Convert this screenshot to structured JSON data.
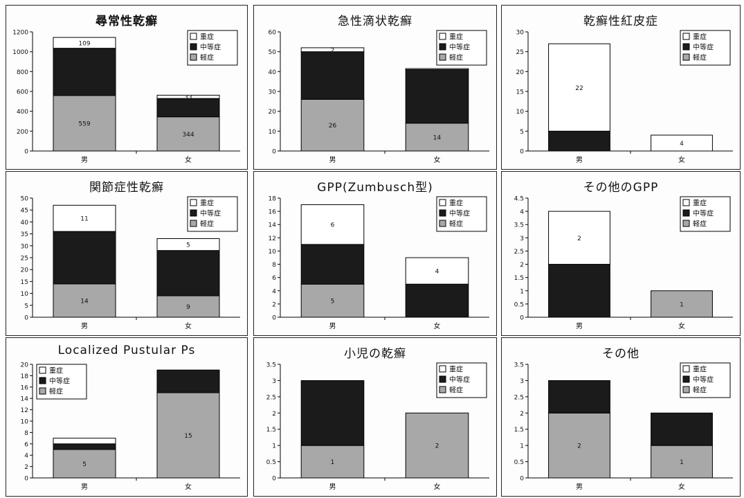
{
  "figure": {
    "colors": {
      "mild": "#a8a8a8",
      "moderate": "#1b1b1b",
      "severe": "#ffffff",
      "axis": "#000000"
    }
  },
  "chart_data": [
    {
      "type": "bar",
      "title": "尋常性乾癬",
      "title_bold": true,
      "categories": [
        "男",
        "女"
      ],
      "series": [
        {
          "name": "軽症",
          "values": [
            559,
            344
          ]
        },
        {
          "name": "中等症",
          "values": [
            476,
            185
          ]
        },
        {
          "name": "重症",
          "values": [
            109,
            33
          ]
        }
      ],
      "labels": {
        "軽症": [
          "559",
          "344"
        ],
        "中等症": [
          "",
          ""
        ],
        "重症": [
          "109",
          "33"
        ]
      },
      "ylim": [
        0,
        1200
      ],
      "ystep": 200,
      "legend": "top-right",
      "grid": false
    },
    {
      "type": "bar",
      "title": "急性滴状乾癬",
      "categories": [
        "男",
        "女"
      ],
      "series": [
        {
          "name": "軽症",
          "values": [
            26,
            14
          ]
        },
        {
          "name": "中等症",
          "values": [
            24,
            27
          ]
        },
        {
          "name": "重症",
          "values": [
            2,
            0.5
          ]
        }
      ],
      "labels": {
        "軽症": [
          "26",
          "14"
        ],
        "中等症": [
          "",
          ""
        ],
        "重症": [
          "2",
          ""
        ]
      },
      "ylim": [
        0,
        60
      ],
      "ystep": 10,
      "legend": "top-right",
      "grid": false
    },
    {
      "type": "bar",
      "title": "乾癬性紅皮症",
      "categories": [
        "男",
        "女"
      ],
      "series": [
        {
          "name": "軽症",
          "values": [
            0,
            0
          ]
        },
        {
          "name": "中等症",
          "values": [
            5,
            0
          ]
        },
        {
          "name": "重症",
          "values": [
            22,
            4
          ]
        }
      ],
      "labels": {
        "軽症": [
          "",
          ""
        ],
        "中等症": [
          "",
          ""
        ],
        "重症": [
          "22",
          "4"
        ]
      },
      "ylim": [
        0,
        30
      ],
      "ystep": 5,
      "legend": "top-right",
      "grid": false
    },
    {
      "type": "bar",
      "title": "関節症性乾癬",
      "categories": [
        "男",
        "女"
      ],
      "series": [
        {
          "name": "軽症",
          "values": [
            14,
            9
          ]
        },
        {
          "name": "中等症",
          "values": [
            22,
            19
          ]
        },
        {
          "name": "重症",
          "values": [
            11,
            5
          ]
        }
      ],
      "labels": {
        "軽症": [
          "14",
          "9"
        ],
        "中等症": [
          "",
          ""
        ],
        "重症": [
          "11",
          "5"
        ]
      },
      "ylim": [
        0,
        50
      ],
      "ystep": 5,
      "legend": "top-right",
      "grid": false
    },
    {
      "type": "bar",
      "title": "GPP(Zumbusch型)",
      "categories": [
        "男",
        "女"
      ],
      "series": [
        {
          "name": "軽症",
          "values": [
            5,
            0
          ]
        },
        {
          "name": "中等症",
          "values": [
            6,
            5
          ]
        },
        {
          "name": "重症",
          "values": [
            6,
            4
          ]
        }
      ],
      "labels": {
        "軽症": [
          "5",
          ""
        ],
        "中等症": [
          "",
          ""
        ],
        "重症": [
          "6",
          "4"
        ]
      },
      "ylim": [
        0,
        18
      ],
      "ystep": 2,
      "legend": "top-right",
      "grid": false
    },
    {
      "type": "bar",
      "title": "その他のGPP",
      "categories": [
        "男",
        "女"
      ],
      "series": [
        {
          "name": "軽症",
          "values": [
            0,
            1
          ]
        },
        {
          "name": "中等症",
          "values": [
            2,
            0
          ]
        },
        {
          "name": "重症",
          "values": [
            2,
            0
          ]
        }
      ],
      "labels": {
        "軽症": [
          "",
          "1"
        ],
        "中等症": [
          "",
          ""
        ],
        "重症": [
          "2",
          ""
        ]
      },
      "ylim": [
        0,
        4.5
      ],
      "ystep": 0.5,
      "legend": "top-right",
      "grid": false
    },
    {
      "type": "bar",
      "title": "Localized Pustular Ps",
      "categories": [
        "男",
        "女"
      ],
      "series": [
        {
          "name": "軽症",
          "values": [
            5,
            15
          ]
        },
        {
          "name": "中等症",
          "values": [
            1,
            4
          ]
        },
        {
          "name": "重症",
          "values": [
            1,
            0
          ]
        }
      ],
      "labels": {
        "軽症": [
          "5",
          "15"
        ],
        "中等症": [
          "",
          ""
        ],
        "重症": [
          "",
          ""
        ]
      },
      "ylim": [
        0,
        20
      ],
      "ystep": 2,
      "legend": "top-left",
      "grid": false
    },
    {
      "type": "bar",
      "title": "小児の乾癬",
      "categories": [
        "男",
        "女"
      ],
      "series": [
        {
          "name": "軽症",
          "values": [
            1,
            2
          ]
        },
        {
          "name": "中等症",
          "values": [
            2,
            0
          ]
        },
        {
          "name": "重症",
          "values": [
            0,
            0
          ]
        }
      ],
      "labels": {
        "軽症": [
          "1",
          "2"
        ],
        "中等症": [
          "",
          ""
        ],
        "重症": [
          "",
          ""
        ]
      },
      "ylim": [
        0,
        3.5
      ],
      "ystep": 0.5,
      "legend": "top-right",
      "grid": false
    },
    {
      "type": "bar",
      "title": "その他",
      "categories": [
        "男",
        "女"
      ],
      "series": [
        {
          "name": "軽症",
          "values": [
            2,
            1
          ]
        },
        {
          "name": "中等症",
          "values": [
            1,
            1
          ]
        },
        {
          "name": "重症",
          "values": [
            0,
            0
          ]
        }
      ],
      "labels": {
        "軽症": [
          "2",
          "1"
        ],
        "中等症": [
          "",
          ""
        ],
        "重症": [
          "",
          ""
        ]
      },
      "ylim": [
        0,
        3.5
      ],
      "ystep": 0.5,
      "legend": "top-right",
      "grid": false
    }
  ]
}
